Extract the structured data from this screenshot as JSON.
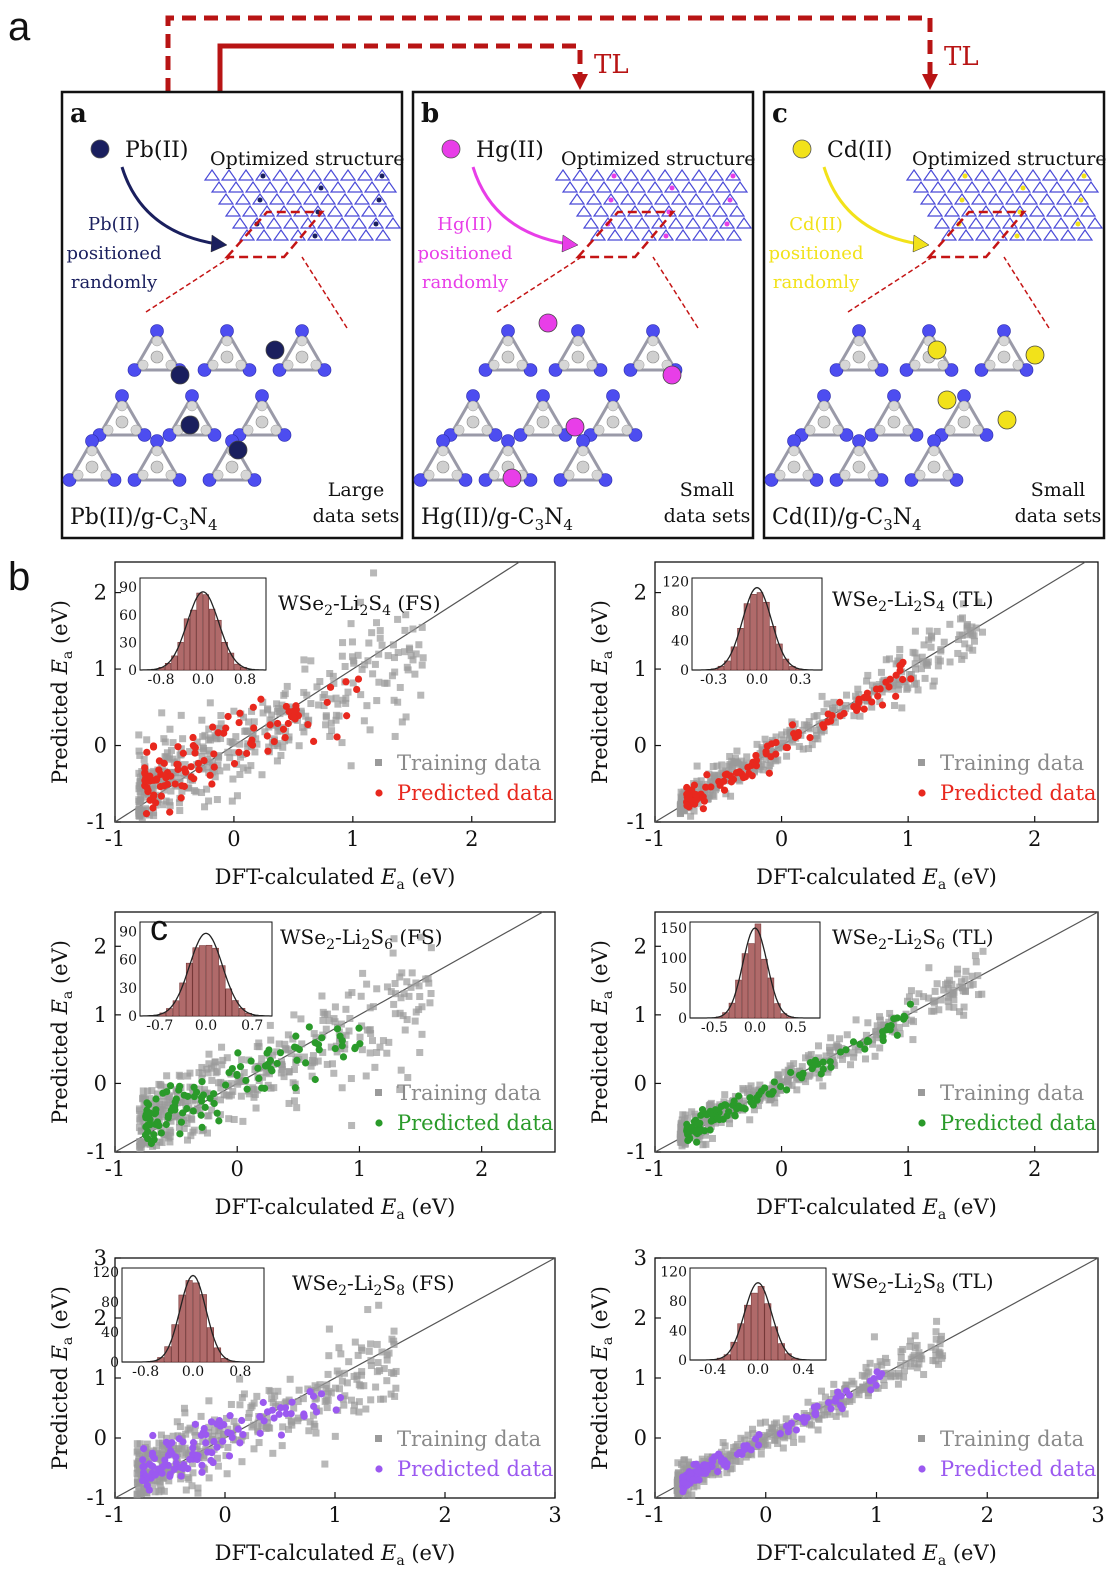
{
  "figure": {
    "panel_a_letter": "a",
    "panel_b_letter": "b",
    "stray_letter": "c",
    "transfer_label": "TL",
    "arrow_color": "#b81414"
  },
  "structures": [
    {
      "letter": "a",
      "metal": "Pb(II)",
      "metal_color": "#1a1f5e",
      "positioned": [
        "Pb(II)",
        "positioned",
        "randomly"
      ],
      "title": "Optimized structure",
      "formula_main": "Pb(II)/g-C",
      "formula_sub1": "3",
      "formula_mid": "N",
      "formula_sub2": "4",
      "size_lines": [
        "Large",
        "data sets"
      ],
      "adatoms": [
        [
          180,
          375
        ],
        [
          275,
          350
        ],
        [
          190,
          425
        ],
        [
          238,
          450
        ]
      ]
    },
    {
      "letter": "b",
      "metal": "Hg(II)",
      "metal_color": "#e83ee8",
      "positioned": [
        "Hg(II)",
        "positioned",
        "randomly"
      ],
      "title": "Optimized structure",
      "formula_main": "Hg(II)/g-C",
      "formula_sub1": "3",
      "formula_mid": "N",
      "formula_sub2": "4",
      "size_lines": [
        "Small",
        "data sets"
      ],
      "adatoms": [
        [
          548,
          323
        ],
        [
          672,
          375
        ],
        [
          575,
          427
        ],
        [
          512,
          478
        ]
      ]
    },
    {
      "letter": "c",
      "metal": "Cd(II)",
      "metal_color": "#f2e21a",
      "positioned": [
        "Cd(II)",
        "positioned",
        "randomly"
      ],
      "title": "Optimized structure",
      "formula_main": "Cd(II)/g-C",
      "formula_sub1": "3",
      "formula_mid": "N",
      "formula_sub2": "4",
      "size_lines": [
        "Small",
        "data sets"
      ],
      "adatoms": [
        [
          937,
          350
        ],
        [
          1035,
          355
        ],
        [
          947,
          400
        ],
        [
          1007,
          420
        ]
      ]
    }
  ],
  "chart_data": [
    {
      "type": "scatter",
      "title": "WSe2-Li2S4 (FS)",
      "title_parts": [
        "WSe",
        "2",
        "-Li",
        "2",
        "S",
        "4",
        " (FS)"
      ],
      "xlabel": "DFT-calculated Ea (eV)",
      "xlabel_parts": [
        "DFT-calculated ",
        "E",
        "a",
        " (eV)"
      ],
      "ylabel": "Predicted Ea (eV)",
      "ylabel_parts": [
        "Predicted ",
        "E",
        "a",
        " (eV)"
      ],
      "xlim": [
        -1,
        2.7
      ],
      "ylim": [
        -1,
        2.4
      ],
      "xticks": [
        "-1",
        "0",
        "1",
        "2"
      ],
      "yticks": [
        "-1",
        "0",
        "1",
        "2"
      ],
      "series": [
        {
          "name": "Training data",
          "color": "#9a9a9a"
        },
        {
          "name": "Predicted data",
          "color": "#e8281e"
        }
      ],
      "inset": {
        "type": "histogram",
        "xlim": [
          -1.2,
          1.2
        ],
        "xticks": [
          "-0.8",
          "0.0",
          "0.8"
        ],
        "ylim": [
          0,
          100
        ],
        "yticks": [
          "0",
          "30",
          "60",
          "90"
        ],
        "sigma": 0.3,
        "peak": 85
      }
    },
    {
      "type": "scatter",
      "title": "WSe2-Li2S4 (TL)",
      "title_parts": [
        "WSe",
        "2",
        "-Li",
        "2",
        "S",
        "4",
        " (TL)"
      ],
      "xlabel": "DFT-calculated Ea (eV)",
      "xlabel_parts": [
        "DFT-calculated ",
        "E",
        "a",
        " (eV)"
      ],
      "ylabel": "Predicted Ea (eV)",
      "ylabel_parts": [
        "Predicted ",
        "E",
        "a",
        " (eV)"
      ],
      "xlim": [
        -1,
        2.5
      ],
      "ylim": [
        -1,
        2.4
      ],
      "xticks": [
        "-1",
        "0",
        "1",
        "2"
      ],
      "yticks": [
        "-1",
        "0",
        "1",
        "2"
      ],
      "series": [
        {
          "name": "Training data",
          "color": "#9a9a9a"
        },
        {
          "name": "Predicted data",
          "color": "#e8281e"
        }
      ],
      "inset": {
        "type": "histogram",
        "xlim": [
          -0.45,
          0.45
        ],
        "xticks": [
          "-0.3",
          "0.0",
          "0.3"
        ],
        "ylim": [
          0,
          125
        ],
        "yticks": [
          "0",
          "40",
          "80",
          "120"
        ],
        "sigma": 0.1,
        "peak": 112
      }
    },
    {
      "type": "scatter",
      "title": "WSe2-Li2S6 (FS)",
      "title_parts": [
        "WSe",
        "2",
        "-Li",
        "2",
        "S",
        "6",
        " (FS)"
      ],
      "xlabel": "DFT-calculated Ea (eV)",
      "xlabel_parts": [
        "DFT-calculated ",
        "E",
        "a",
        " (eV)"
      ],
      "ylabel": "Predicted Ea (eV)",
      "ylabel_parts": [
        "Predicted ",
        "E",
        "a",
        " (eV)"
      ],
      "xlim": [
        -1,
        2.6
      ],
      "ylim": [
        -1,
        2.5
      ],
      "xticks": [
        "-1",
        "0",
        "1",
        "2"
      ],
      "yticks": [
        "-1",
        "0",
        "1",
        "2"
      ],
      "series": [
        {
          "name": "Training data",
          "color": "#9a9a9a"
        },
        {
          "name": "Predicted data",
          "color": "#2a9a2a"
        }
      ],
      "inset": {
        "type": "histogram",
        "xlim": [
          -1.0,
          1.0
        ],
        "xticks": [
          "-0.7",
          "0.0",
          "0.7"
        ],
        "ylim": [
          0,
          100
        ],
        "yticks": [
          "0",
          "30",
          "60",
          "90"
        ],
        "sigma": 0.25,
        "peak": 88
      }
    },
    {
      "type": "scatter",
      "title": "WSe2-Li2S6 (TL)",
      "title_parts": [
        "WSe",
        "2",
        "-Li",
        "2",
        "S",
        "6",
        " (TL)"
      ],
      "xlabel": "DFT-calculated Ea (eV)",
      "xlabel_parts": [
        "DFT-calculated ",
        "E",
        "a",
        " (eV)"
      ],
      "ylabel": "Predicted Ea (eV)",
      "ylabel_parts": [
        "Predicted ",
        "E",
        "a",
        " (eV)"
      ],
      "xlim": [
        -1,
        2.5
      ],
      "ylim": [
        -1,
        2.5
      ],
      "xticks": [
        "-1",
        "0",
        "1",
        "2"
      ],
      "yticks": [
        "-1",
        "0",
        "1",
        "2"
      ],
      "series": [
        {
          "name": "Training data",
          "color": "#9a9a9a"
        },
        {
          "name": "Predicted data",
          "color": "#2a9a2a"
        }
      ],
      "inset": {
        "type": "histogram",
        "xlim": [
          -0.8,
          0.8
        ],
        "xticks": [
          "-0.5",
          "0.0",
          "0.5"
        ],
        "ylim": [
          0,
          160
        ],
        "yticks": [
          "0",
          "50",
          "100",
          "150"
        ],
        "sigma": 0.15,
        "peak": 150
      }
    },
    {
      "type": "scatter",
      "title": "WSe2-Li2S8 (FS)",
      "title_parts": [
        "WSe",
        "2",
        "-Li",
        "2",
        "S",
        "8",
        " (FS)"
      ],
      "xlabel": "DFT-calculated Ea (eV)",
      "xlabel_parts": [
        "DFT-calculated ",
        "E",
        "a",
        " (eV)"
      ],
      "ylabel": "Predicted Ea (eV)",
      "ylabel_parts": [
        "Predicted ",
        "E",
        "a",
        " (eV)"
      ],
      "xlim": [
        -1,
        3
      ],
      "ylim": [
        -1,
        3
      ],
      "xticks": [
        "-1",
        "0",
        "1",
        "2",
        "3"
      ],
      "yticks": [
        "-1",
        "0",
        "1",
        "2",
        "3"
      ],
      "series": [
        {
          "name": "Training data",
          "color": "#9a9a9a"
        },
        {
          "name": "Predicted data",
          "color": "#9b59f0"
        }
      ],
      "inset": {
        "type": "histogram",
        "xlim": [
          -1.2,
          1.2
        ],
        "xticks": [
          "-0.8",
          "0.0",
          "0.8"
        ],
        "ylim": [
          0,
          125
        ],
        "yticks": [
          "0",
          "40",
          "80",
          "120"
        ],
        "sigma": 0.22,
        "peak": 115
      }
    },
    {
      "type": "scatter",
      "title": "WSe2-Li2S8 (TL)",
      "title_parts": [
        "WSe",
        "2",
        "-Li",
        "2",
        "S",
        "8",
        " (TL)"
      ],
      "xlabel": "DFT-calculated Ea (eV)",
      "xlabel_parts": [
        "DFT-calculated ",
        "E",
        "a",
        " (eV)"
      ],
      "ylabel": "Predicted Ea (eV)",
      "ylabel_parts": [
        "Predicted ",
        "E",
        "a",
        " (eV)"
      ],
      "xlim": [
        -1,
        3
      ],
      "ylim": [
        -1,
        3
      ],
      "xticks": [
        "-1",
        "0",
        "1",
        "2",
        "3"
      ],
      "yticks": [
        "-1",
        "0",
        "1",
        "2",
        "3"
      ],
      "series": [
        {
          "name": "Training data",
          "color": "#9a9a9a"
        },
        {
          "name": "Predicted data",
          "color": "#9b59f0"
        }
      ],
      "inset": {
        "type": "histogram",
        "xlim": [
          -0.6,
          0.6
        ],
        "xticks": [
          "-0.4",
          "0.0",
          "0.4"
        ],
        "ylim": [
          0,
          125
        ],
        "yticks": [
          "0",
          "40",
          "80",
          "120"
        ],
        "sigma": 0.12,
        "peak": 105
      }
    }
  ]
}
